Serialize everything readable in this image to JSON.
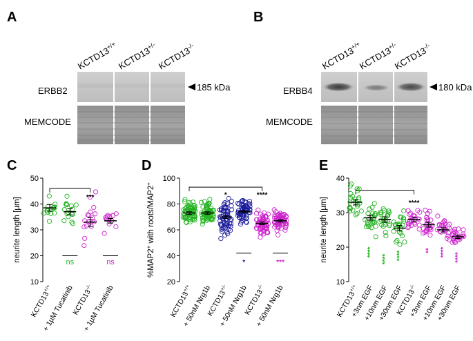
{
  "colors": {
    "green": "#22b11f",
    "blue": "#1a1a9c",
    "magenta": "#cc22cc",
    "black": "#000000"
  },
  "panels": {
    "A": {
      "label": "A",
      "lanes": [
        "KCTD13+/+",
        "KCTD13+/-",
        "KCTD13-/-"
      ],
      "rows": [
        "ERBB2",
        "MEMCODE"
      ],
      "marker": "185 kDa"
    },
    "B": {
      "label": "B",
      "lanes": [
        "KCTD13+/+",
        "KCTD13+/-",
        "KCTD13-/-"
      ],
      "rows": [
        "ERBB4",
        "MEMCODE"
      ],
      "marker": "180 kDa"
    },
    "C": {
      "label": "C"
    },
    "D": {
      "label": "D"
    },
    "E": {
      "label": "E"
    }
  },
  "chart_data": [
    {
      "id": "C",
      "type": "scatter",
      "ylabel": "neurite length [µm]",
      "ylim": [
        10,
        50
      ],
      "yticks": [
        10,
        20,
        30,
        40,
        50
      ],
      "groups": [
        {
          "label": "KCTD13+/+",
          "color": "green",
          "mean": 38.5,
          "sem": 1.3,
          "spread": 4.2,
          "n": 14
        },
        {
          "label": "+ 1µM Tucatinib",
          "color": "green",
          "mean": 37.0,
          "sem": 1.2,
          "spread": 4.5,
          "n": 16
        },
        {
          "label": "KCTD13-/-",
          "color": "magenta",
          "mean": 33.0,
          "sem": 1.7,
          "spread": 6.0,
          "n": 18
        },
        {
          "label": "+ 1µM Tucatinib",
          "color": "magenta",
          "mean": 33.5,
          "sem": 0.9,
          "spread": 3.0,
          "n": 14
        }
      ],
      "annotations": [
        {
          "text": "***",
          "group": 2,
          "y": 42.5,
          "color": "black"
        },
        {
          "text": "ns",
          "group": 1,
          "y": 17.5,
          "color": "green"
        },
        {
          "text": "ns",
          "group": 3,
          "y": 17.5,
          "color": "magenta"
        }
      ]
    },
    {
      "id": "D",
      "type": "scatter",
      "ylabel": "%MAP2+ with roots/MAP2+",
      "ylim": [
        20,
        100
      ],
      "yticks": [
        20,
        40,
        60,
        80,
        100
      ],
      "groups": [
        {
          "label": "KCTD13+/+",
          "color": "green",
          "mean": 73,
          "sem": 1.0,
          "spread": 6,
          "n": 60
        },
        {
          "label": "+ 50nM Nrg1b",
          "color": "green",
          "mean": 73,
          "sem": 1.0,
          "spread": 6,
          "n": 60
        },
        {
          "label": "KCTD13+/-",
          "color": "blue",
          "mean": 70,
          "sem": 1.2,
          "spread": 9,
          "n": 60
        },
        {
          "label": "+ 50nM Nrg1b",
          "color": "blue",
          "mean": 74,
          "sem": 1.0,
          "spread": 6,
          "n": 60
        },
        {
          "label": "KCTD13-/-",
          "color": "magenta",
          "mean": 65,
          "sem": 1.0,
          "spread": 7,
          "n": 60
        },
        {
          "label": "+ 50nM Nrg1b",
          "color": "magenta",
          "mean": 67,
          "sem": 1.0,
          "spread": 6,
          "n": 60
        }
      ],
      "annotations": [
        {
          "text": "*",
          "group": 2,
          "y": 87,
          "color": "black"
        },
        {
          "text": "****",
          "group": 4,
          "y": 87,
          "color": "black"
        },
        {
          "text": "*",
          "group": 3,
          "y": 35,
          "color": "blue"
        },
        {
          "text": "***",
          "group": 5,
          "y": 35,
          "color": "magenta"
        }
      ]
    },
    {
      "id": "E",
      "type": "scatter",
      "ylabel": "neurite length [µm]",
      "ylim": [
        10,
        40
      ],
      "yticks": [
        10,
        20,
        30,
        40
      ],
      "groups": [
        {
          "label": "KCTD13+/+",
          "color": "green",
          "mean": 33.0,
          "sem": 0.8,
          "spread": 3.0,
          "n": 24
        },
        {
          "label": "+3nm EGF",
          "color": "green",
          "mean": 28.5,
          "sem": 0.7,
          "spread": 3.0,
          "n": 24
        },
        {
          "label": "+10nm EGF",
          "color": "green",
          "mean": 28.0,
          "sem": 0.8,
          "spread": 3.5,
          "n": 24
        },
        {
          "label": "+30nm EGF",
          "color": "green",
          "mean": 25.5,
          "sem": 0.8,
          "spread": 3.0,
          "n": 24
        },
        {
          "label": "KCTD13-/-",
          "color": "magenta",
          "mean": 28.0,
          "sem": 0.6,
          "spread": 2.5,
          "n": 24
        },
        {
          "label": "+3nm EGF",
          "color": "magenta",
          "mean": 26.5,
          "sem": 0.7,
          "spread": 3.0,
          "n": 24
        },
        {
          "label": "+10nm EGF",
          "color": "magenta",
          "mean": 25.0,
          "sem": 0.6,
          "spread": 2.5,
          "n": 24
        },
        {
          "label": "+30nm EGF",
          "color": "magenta",
          "mean": 23.0,
          "sem": 0.5,
          "spread": 2.0,
          "n": 24
        }
      ],
      "annotations": [
        {
          "text": "****",
          "group": 4,
          "y": 32.8,
          "color": "black"
        },
        {
          "text": "****",
          "group": 1,
          "y": 18.5,
          "color": "green"
        },
        {
          "text": "****",
          "group": 2,
          "y": 16.5,
          "color": "green"
        },
        {
          "text": "****",
          "group": 3,
          "y": 17.5,
          "color": "green"
        },
        {
          "text": "**",
          "group": 5,
          "y": 19.0,
          "color": "magenta"
        },
        {
          "text": "****",
          "group": 6,
          "y": 18.5,
          "color": "magenta"
        },
        {
          "text": "****",
          "group": 7,
          "y": 17.0,
          "color": "magenta"
        }
      ]
    }
  ]
}
